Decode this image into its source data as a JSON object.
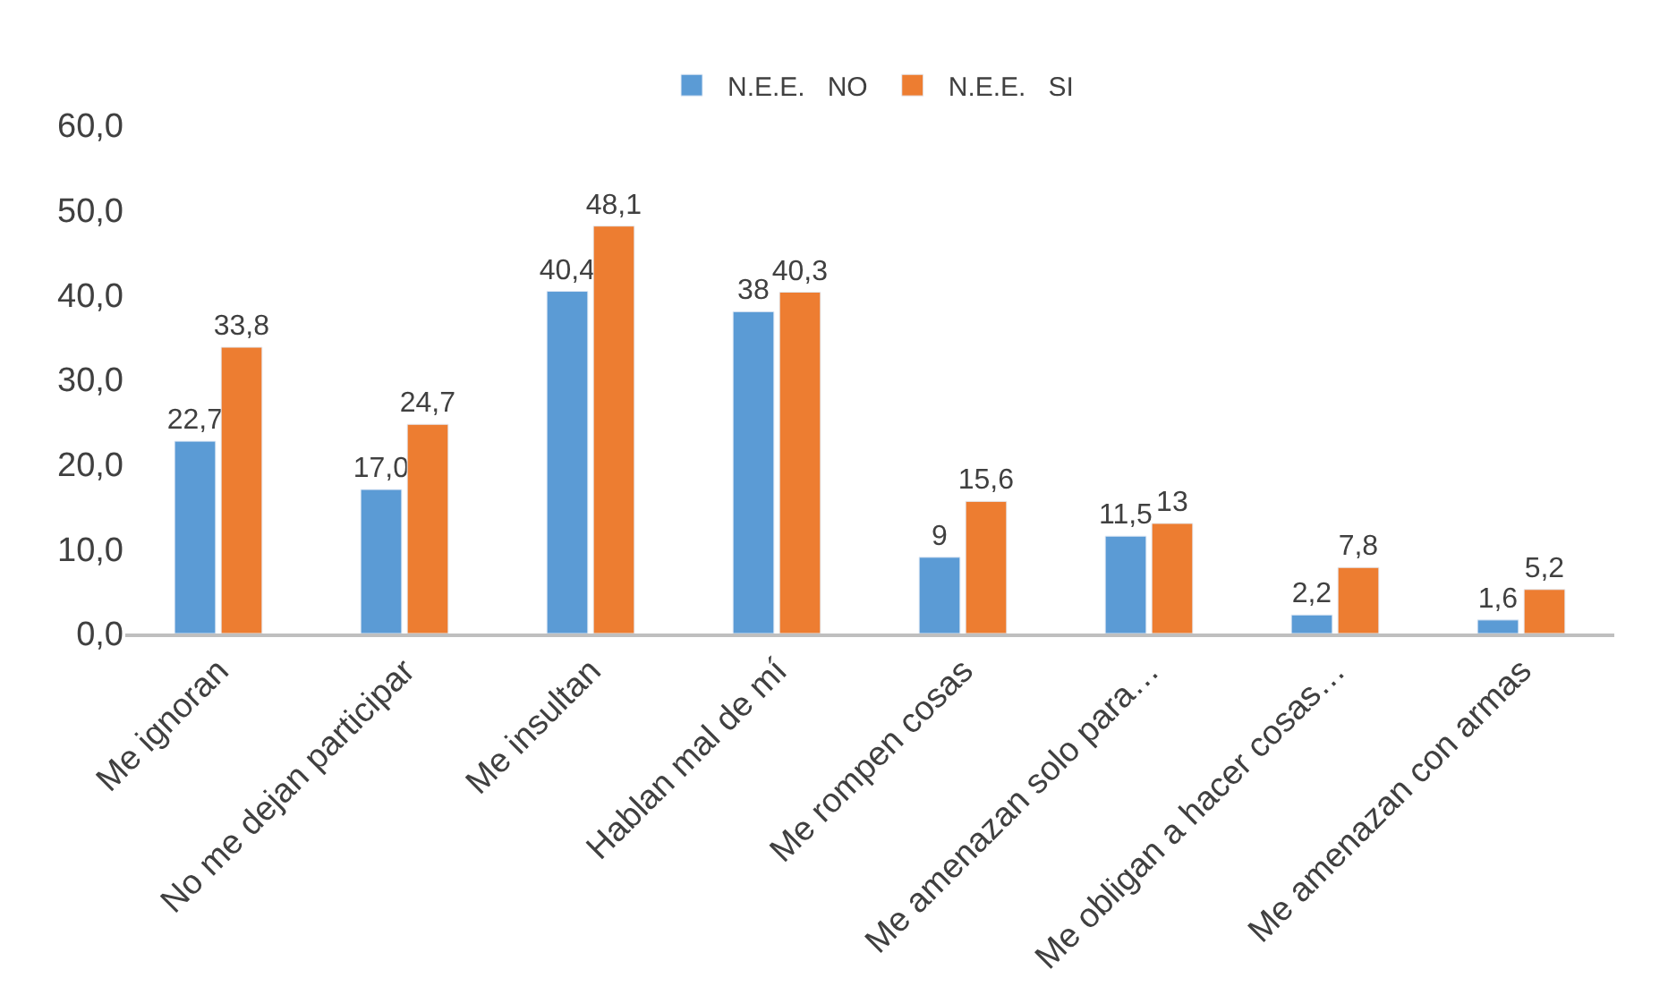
{
  "chart_data": {
    "type": "bar",
    "categories": [
      "Me ignoran",
      "No me dejan participar",
      "Me insultan",
      "Hablan mal de mí",
      "Me rompen cosas",
      "Me amenazan solo para…",
      "Me obligan a hacer cosas…",
      "Me amenazan con armas"
    ],
    "series": [
      {
        "name": "N.E.E.   NO",
        "color": "#5b9bd5",
        "values": [
          22.7,
          17.0,
          40.4,
          38,
          9,
          11.5,
          2.2,
          1.6
        ],
        "value_labels": [
          "22,7",
          "17,0",
          "40,4",
          "38",
          "9",
          "11,5",
          "2,2",
          "1,6"
        ]
      },
      {
        "name": "N.E.E.   SI",
        "color": "#ed7d31",
        "values": [
          33.8,
          24.7,
          48.1,
          40.3,
          15.6,
          13,
          7.8,
          5.2
        ],
        "value_labels": [
          "33,8",
          "24,7",
          "48,1",
          "40,3",
          "15,6",
          "13",
          "7,8",
          "5,2"
        ]
      }
    ],
    "ylim": [
      0,
      60
    ],
    "yticks": [
      {
        "value": 0,
        "label": "0,0"
      },
      {
        "value": 10,
        "label": "10,0"
      },
      {
        "value": 20,
        "label": "20,0"
      },
      {
        "value": 30,
        "label": "30,0"
      },
      {
        "value": 40,
        "label": "40,0"
      },
      {
        "value": 50,
        "label": "50,0"
      },
      {
        "value": 60,
        "label": "60,0"
      }
    ],
    "legend": "top"
  }
}
